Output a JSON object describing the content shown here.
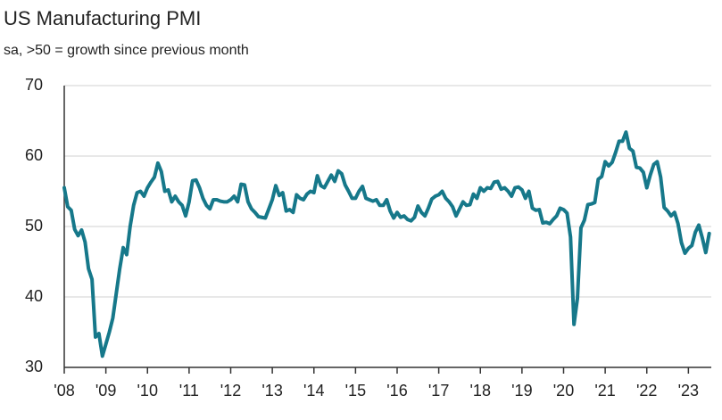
{
  "chart_data": {
    "type": "line",
    "title": "US Manufacturing PMI",
    "subtitle": "sa, >50 = growth since previous month",
    "color": "#16788a",
    "grid": true,
    "xlim": [
      2008,
      2023.55
    ],
    "ylim": [
      30,
      70
    ],
    "yticks": [
      30,
      40,
      50,
      60,
      70
    ],
    "xticks": [
      {
        "value": 2008,
        "label": "'08"
      },
      {
        "value": 2009,
        "label": "'09"
      },
      {
        "value": 2010,
        "label": "'10"
      },
      {
        "value": 2011,
        "label": "'11"
      },
      {
        "value": 2012,
        "label": "'12"
      },
      {
        "value": 2013,
        "label": "'13"
      },
      {
        "value": 2014,
        "label": "'14"
      },
      {
        "value": 2015,
        "label": "'15"
      },
      {
        "value": 2016,
        "label": "'16"
      },
      {
        "value": 2017,
        "label": "'17"
      },
      {
        "value": 2018,
        "label": "'18"
      },
      {
        "value": 2019,
        "label": "'19"
      },
      {
        "value": 2020,
        "label": "'20"
      },
      {
        "value": 2021,
        "label": "'21"
      },
      {
        "value": 2022,
        "label": "'22"
      },
      {
        "value": 2023,
        "label": "'23"
      }
    ],
    "x": [
      2008,
      2008.083,
      2008.167,
      2008.25,
      2008.333,
      2008.417,
      2008.5,
      2008.583,
      2008.667,
      2008.75,
      2008.833,
      2008.917,
      2009,
      2009.083,
      2009.167,
      2009.25,
      2009.333,
      2009.417,
      2009.5,
      2009.583,
      2009.667,
      2009.75,
      2009.833,
      2009.917,
      2010,
      2010.083,
      2010.167,
      2010.25,
      2010.333,
      2010.417,
      2010.5,
      2010.583,
      2010.667,
      2010.75,
      2010.833,
      2010.917,
      2011,
      2011.083,
      2011.167,
      2011.25,
      2011.333,
      2011.417,
      2011.5,
      2011.583,
      2011.667,
      2011.75,
      2011.833,
      2011.917,
      2012,
      2012.083,
      2012.167,
      2012.25,
      2012.333,
      2012.417,
      2012.5,
      2012.583,
      2012.667,
      2012.75,
      2012.833,
      2012.917,
      2013,
      2013.083,
      2013.167,
      2013.25,
      2013.333,
      2013.417,
      2013.5,
      2013.583,
      2013.667,
      2013.75,
      2013.833,
      2013.917,
      2014,
      2014.083,
      2014.167,
      2014.25,
      2014.333,
      2014.417,
      2014.5,
      2014.583,
      2014.667,
      2014.75,
      2014.833,
      2014.917,
      2015,
      2015.083,
      2015.167,
      2015.25,
      2015.333,
      2015.417,
      2015.5,
      2015.583,
      2015.667,
      2015.75,
      2015.833,
      2015.917,
      2016,
      2016.083,
      2016.167,
      2016.25,
      2016.333,
      2016.417,
      2016.5,
      2016.583,
      2016.667,
      2016.75,
      2016.833,
      2016.917,
      2017,
      2017.083,
      2017.167,
      2017.25,
      2017.333,
      2017.417,
      2017.5,
      2017.583,
      2017.667,
      2017.75,
      2017.833,
      2017.917,
      2018,
      2018.083,
      2018.167,
      2018.25,
      2018.333,
      2018.417,
      2018.5,
      2018.583,
      2018.667,
      2018.75,
      2018.833,
      2018.917,
      2019,
      2019.083,
      2019.167,
      2019.25,
      2019.333,
      2019.417,
      2019.5,
      2019.583,
      2019.667,
      2019.75,
      2019.833,
      2019.917,
      2020,
      2020.083,
      2020.167,
      2020.25,
      2020.333,
      2020.417,
      2020.5,
      2020.583,
      2020.667,
      2020.75,
      2020.833,
      2020.917,
      2021,
      2021.083,
      2021.167,
      2021.25,
      2021.333,
      2021.417,
      2021.5,
      2021.583,
      2021.667,
      2021.75,
      2021.833,
      2021.917,
      2022,
      2022.083,
      2022.167,
      2022.25,
      2022.333,
      2022.417,
      2022.5,
      2022.583,
      2022.667,
      2022.75,
      2022.833,
      2022.917,
      2023,
      2023.083,
      2023.167,
      2023.25,
      2023.333,
      2023.417,
      2023.5
    ],
    "values": [
      55.5,
      52.8,
      52.3,
      49.6,
      48.7,
      49.5,
      47.8,
      44.0,
      42.5,
      34.3,
      34.8,
      31.6,
      33.3,
      35.0,
      37.0,
      40.5,
      44.0,
      47.0,
      46.0,
      50.0,
      53.0,
      54.8,
      55.0,
      54.3,
      55.5,
      56.3,
      57.0,
      59.0,
      57.8,
      55.0,
      55.2,
      53.5,
      54.3,
      53.5,
      53.0,
      51.5,
      53.5,
      56.5,
      56.6,
      55.5,
      54.0,
      53.0,
      52.5,
      53.8,
      53.8,
      53.6,
      53.5,
      53.5,
      53.8,
      54.3,
      53.5,
      56.0,
      55.9,
      53.5,
      52.5,
      52.0,
      51.4,
      51.3,
      51.2,
      52.5,
      53.8,
      55.8,
      54.4,
      54.8,
      52.2,
      52.4,
      52.0,
      54.5,
      54.0,
      53.8,
      54.6,
      55.0,
      54.8,
      57.2,
      55.8,
      55.5,
      56.4,
      57.3,
      56.4,
      57.9,
      57.5,
      55.9,
      55.0,
      54.0,
      54.0,
      55.0,
      55.7,
      54.0,
      53.8,
      53.6,
      53.8,
      53.0,
      53.0,
      53.8,
      52.2,
      51.2,
      52.0,
      51.3,
      51.5,
      51.0,
      50.8,
      51.3,
      52.9,
      52.0,
      51.5,
      52.6,
      53.9,
      54.3,
      54.5,
      55.0,
      54.0,
      53.5,
      52.8,
      51.5,
      52.5,
      53.5,
      53.0,
      53.1,
      54.6,
      54.0,
      55.5,
      55.0,
      55.5,
      55.4,
      56.3,
      56.4,
      55.3,
      55.5,
      55.0,
      54.3,
      55.5,
      55.6,
      55.2,
      54.0,
      55.0,
      52.6,
      52.3,
      52.4,
      50.5,
      50.6,
      50.4,
      51.0,
      51.5,
      52.6,
      52.4,
      51.9,
      48.5,
      36.1,
      39.8,
      49.8,
      50.9,
      53.1,
      53.2,
      53.4,
      56.7,
      57.1,
      59.2,
      58.6,
      59.1,
      60.5,
      62.1,
      62.1,
      63.4,
      61.1,
      60.7,
      58.4,
      58.3,
      57.7,
      55.5,
      57.3,
      58.8,
      59.2,
      57.0,
      52.7,
      52.2,
      51.5,
      52.0,
      50.4,
      47.7,
      46.2,
      46.9,
      47.3,
      49.2,
      50.2,
      48.4,
      46.3,
      49.0
    ]
  }
}
